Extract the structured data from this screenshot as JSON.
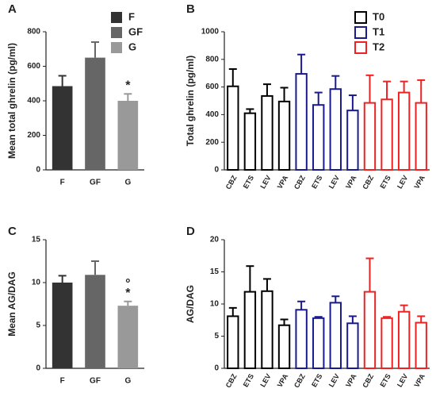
{
  "chart_data": [
    {
      "type": "bar",
      "panel": "A",
      "ylabel": "Mean total ghrelin (pg/ml)",
      "categories": [
        "F",
        "GF",
        "G"
      ],
      "values": [
        485,
        650,
        400
      ],
      "errors": [
        60,
        90,
        40
      ],
      "colors": [
        "#333333",
        "#666666",
        "#999999"
      ],
      "ylim": [
        0,
        800
      ],
      "yticks": [
        0,
        200,
        400,
        600,
        800
      ],
      "annotations": [
        "*"
      ],
      "legend": true
    },
    {
      "type": "grouped_bar",
      "panel": "B",
      "ylabel": "Total ghrelin (pg/ml)",
      "categories": [
        "CBZ",
        "ETS",
        "LEV",
        "VPA"
      ],
      "series": [
        {
          "name": "T0",
          "color": "#000000",
          "values": [
            605,
            410,
            535,
            495
          ],
          "errors": [
            125,
            30,
            85,
            100
          ]
        },
        {
          "name": "T1",
          "color": "#1a1a8c",
          "values": [
            695,
            470,
            585,
            430
          ],
          "errors": [
            140,
            90,
            95,
            110
          ]
        },
        {
          "name": "T2",
          "color": "#ee2222",
          "values": [
            485,
            510,
            560,
            485
          ],
          "errors": [
            200,
            130,
            80,
            165
          ]
        }
      ],
      "ylim": [
        0,
        1000
      ],
      "yticks": [
        0,
        200,
        400,
        600,
        800,
        1000
      ],
      "legend": true
    },
    {
      "type": "bar",
      "panel": "C",
      "ylabel": "Mean AG/DAG",
      "categories": [
        "F",
        "GF",
        "G"
      ],
      "values": [
        10,
        10.9,
        7.3
      ],
      "errors": [
        0.8,
        1.6,
        0.5
      ],
      "colors": [
        "#333333",
        "#666666",
        "#999999"
      ],
      "ylim": [
        0,
        15
      ],
      "yticks": [
        0,
        5,
        10,
        15
      ],
      "annotations": [
        "*",
        "°"
      ],
      "legend": false
    },
    {
      "type": "grouped_bar",
      "panel": "D",
      "ylabel": "AG/DAG",
      "categories": [
        "CBZ",
        "ETS",
        "LEV",
        "VPA"
      ],
      "series": [
        {
          "name": "T0",
          "color": "#000000",
          "values": [
            8.1,
            11.9,
            12,
            6.7
          ],
          "errors": [
            1.3,
            4,
            1.9,
            0.9
          ]
        },
        {
          "name": "T1",
          "color": "#1a1a8c",
          "values": [
            9.1,
            7.8,
            10.2,
            7.0
          ],
          "errors": [
            1.3,
            0.2,
            1,
            1.1
          ]
        },
        {
          "name": "T2",
          "color": "#ee2222",
          "values": [
            11.9,
            7.8,
            8.8,
            7.1
          ],
          "errors": [
            5.2,
            0.2,
            1,
            1
          ]
        }
      ],
      "ylim": [
        0,
        20
      ],
      "yticks": [
        0,
        5,
        10,
        15,
        20
      ],
      "legend": false
    }
  ]
}
